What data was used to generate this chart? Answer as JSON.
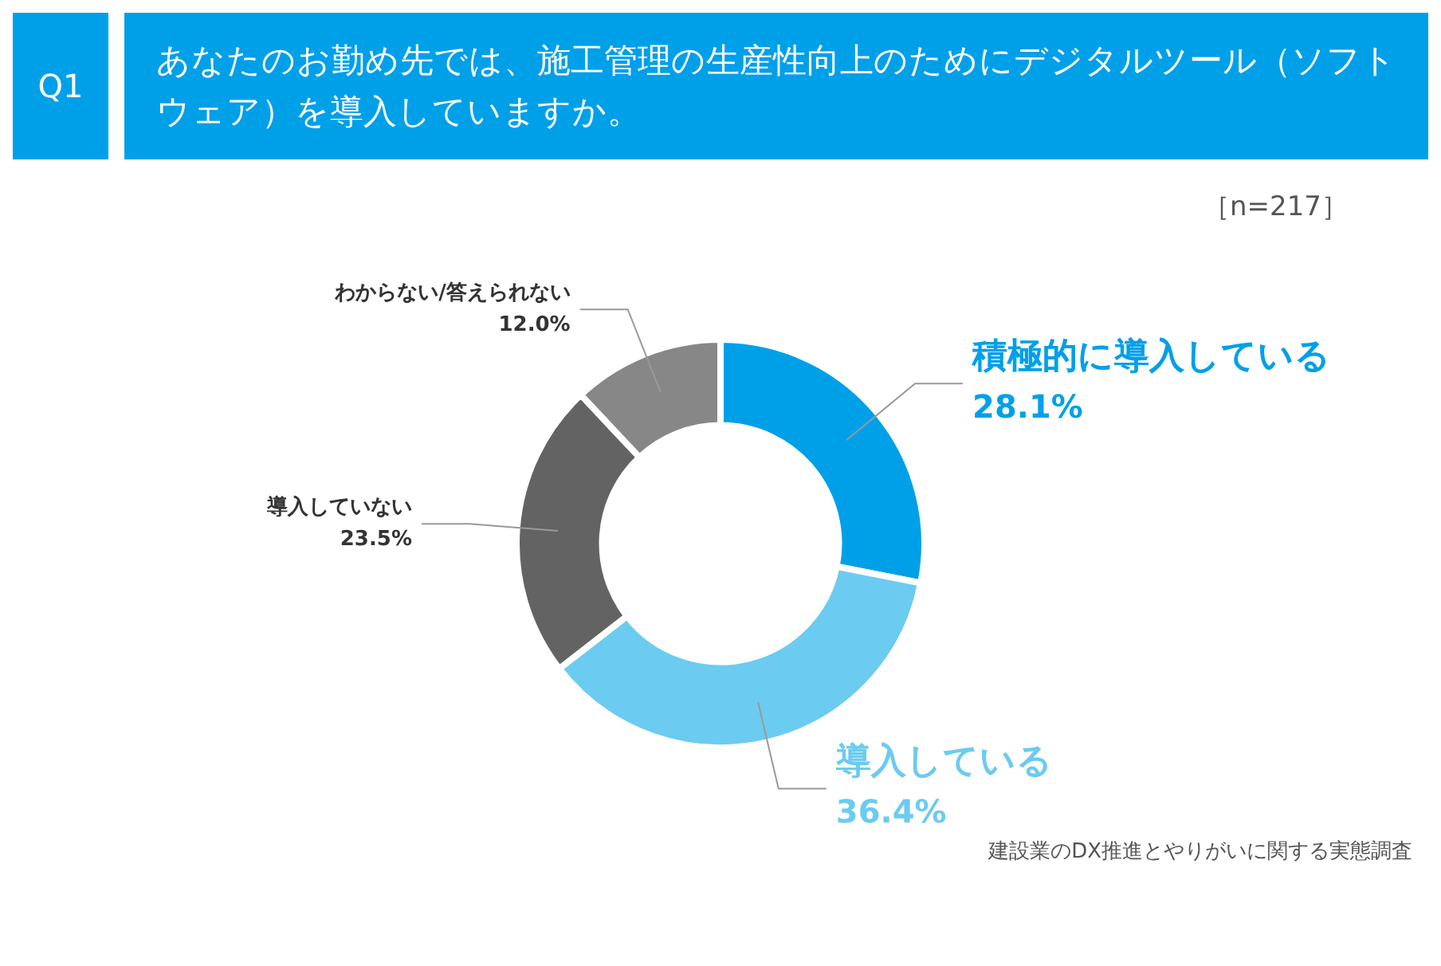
{
  "chart_data": {
    "type": "donut",
    "title": "あなたのお勤め先では、施工管理の生産性向上のためにデジタルツール（ソフトウェア）を導入していますか。",
    "annotations": [
      "Q1",
      "［n=217］",
      "建設業のDX推進とやりがいに関する実態調査"
    ],
    "categories": [
      "積極的に導入している",
      "導入している",
      "導入していない",
      "わからない/答えられない"
    ],
    "values": [
      28.1,
      36.4,
      23.5,
      12.0
    ],
    "value_labels": [
      "28.1%",
      "36.4%",
      "23.5%",
      "12.0%"
    ],
    "colors": [
      "#00a0e9",
      "#6ccbf0",
      "#636363",
      "#878787"
    ],
    "legend": false
  }
}
